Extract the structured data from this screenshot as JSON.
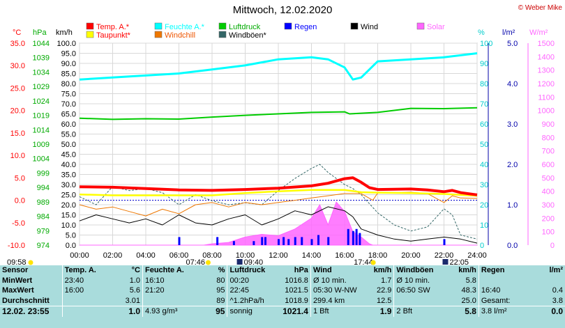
{
  "title": "Mittwoch, 12.02.2020",
  "copyright": "© Weber Mike",
  "colors": {
    "temp": "#ff0000",
    "dew": "#ffff00",
    "humidity": "#00ffff",
    "windchill": "#ee7700",
    "pressure": "#00cc00",
    "gusts": "#336666",
    "rain": "#0000ff",
    "wind": "#000000",
    "solar": "#ff66ff",
    "kmh": "#000000",
    "stats_bg": "#a9dcdc"
  },
  "legend": [
    {
      "label": "Temp. A.*",
      "color": "#ff0000",
      "text_color": "#ff0000"
    },
    {
      "label": "Feuchte A.*",
      "color": "#00ffff",
      "text_color": "#00ffff"
    },
    {
      "label": "Luftdruck",
      "color": "#00cc00",
      "text_color": "#00aa00"
    },
    {
      "label": "Regen",
      "color": "#0000ff",
      "text_color": "#0000ff"
    },
    {
      "label": "Wind",
      "color": "#000000",
      "text_color": "#000000"
    },
    {
      "label": "Solar",
      "color": "#ff66ff",
      "text_color": "#ff66ff"
    },
    {
      "label": "Taupunkt*",
      "color": "#ffff00",
      "text_color": "#ff0000"
    },
    {
      "label": "Windchill",
      "color": "#ee7700",
      "text_color": "#ee5500"
    },
    {
      "label": "Windböen*",
      "color": "#336666",
      "text_color": "#000000"
    }
  ],
  "axis_units": {
    "temp": "°C",
    "pressure": "hPa",
    "speed": "km/h",
    "humidity": "%",
    "rain": "l/m²",
    "solar": "W/m²"
  },
  "axis_ticks": {
    "temp": [
      "35.0",
      "30.0",
      "25.0",
      "20.0",
      "15.0",
      "10.0",
      "5.0",
      "0.0",
      "-5.0",
      "-10.0"
    ],
    "pressure": [
      "1044",
      "1039",
      "1034",
      "1029",
      "1024",
      "1019",
      "1014",
      "1009",
      "1004",
      "999",
      "994",
      "989",
      "984",
      "979",
      "974"
    ],
    "speed": [
      "100.0",
      "95.0",
      "90.0",
      "85.0",
      "80.0",
      "75.0",
      "70.0",
      "65.0",
      "60.0",
      "55.0",
      "50.0",
      "45.0",
      "40.0",
      "35.0",
      "30.0",
      "25.0",
      "20.0",
      "15.0",
      "10.0",
      "5.0",
      "0.0"
    ],
    "humidity": [
      "100",
      "90",
      "80",
      "70",
      "60",
      "50",
      "40",
      "30",
      "20",
      "10",
      "0"
    ],
    "rain": [
      "5.0",
      "4.0",
      "3.0",
      "2.0",
      "1.0",
      "0.0"
    ],
    "solar": [
      "1500",
      "1400",
      "1300",
      "1200",
      "1100",
      "1000",
      "900",
      "800",
      "700",
      "600",
      "500",
      "400",
      "300",
      "200",
      "100",
      "0"
    ],
    "time": [
      "00:00",
      "02:00",
      "04:00",
      "06:00",
      "08:00",
      "10:00",
      "12:00",
      "14:00",
      "16:00",
      "18:00",
      "20:00",
      "22:00",
      "24:00"
    ]
  },
  "sun_marks": {
    "sunrise": "07:46",
    "sunset": "17:44",
    "moonrise": "09:40",
    "moonset": "22:05",
    "left_label": "09:58",
    "right_label": "22:05"
  },
  "chart_data": {
    "type": "line",
    "x_unit": "hour",
    "xlim": [
      0,
      24
    ],
    "series": [
      {
        "name": "Temp. A.",
        "unit": "°C",
        "values": [
          [
            0,
            3.0
          ],
          [
            2,
            2.9
          ],
          [
            4,
            2.6
          ],
          [
            6,
            2.3
          ],
          [
            8,
            2.2
          ],
          [
            10,
            2.4
          ],
          [
            12,
            2.7
          ],
          [
            14,
            3.2
          ],
          [
            15,
            3.8
          ],
          [
            16,
            4.8
          ],
          [
            16.5,
            5.0
          ],
          [
            17,
            4.0
          ],
          [
            17.5,
            2.8
          ],
          [
            18,
            2.4
          ],
          [
            20,
            2.5
          ],
          [
            21,
            2.3
          ],
          [
            22,
            1.9
          ],
          [
            22.5,
            2.2
          ],
          [
            23,
            1.7
          ],
          [
            24,
            1.2
          ]
        ]
      },
      {
        "name": "Taupunkt",
        "unit": "°C",
        "values": [
          [
            0,
            1.3
          ],
          [
            2,
            1.1
          ],
          [
            4,
            1.1
          ],
          [
            6,
            1.1
          ],
          [
            8,
            1.1
          ],
          [
            10,
            1.6
          ],
          [
            12,
            2.0
          ],
          [
            14,
            2.3
          ],
          [
            16,
            2.3
          ],
          [
            17,
            1.8
          ],
          [
            18,
            1.7
          ],
          [
            20,
            1.6
          ],
          [
            22,
            1.4
          ],
          [
            24,
            1.0
          ]
        ]
      },
      {
        "name": "Feuchte A.",
        "unit": "%",
        "values": [
          [
            0,
            82
          ],
          [
            2,
            83
          ],
          [
            4,
            84
          ],
          [
            6,
            85
          ],
          [
            8,
            87
          ],
          [
            10,
            89
          ],
          [
            12,
            92
          ],
          [
            14,
            93
          ],
          [
            15,
            92
          ],
          [
            16,
            88
          ],
          [
            16.5,
            82
          ],
          [
            17,
            83
          ],
          [
            18,
            91
          ],
          [
            20,
            92
          ],
          [
            22,
            93
          ],
          [
            24,
            95
          ]
        ]
      },
      {
        "name": "Luftdruck",
        "unit": "hPa",
        "values": [
          [
            0,
            1018.0
          ],
          [
            2,
            1017.6
          ],
          [
            4,
            1017.8
          ],
          [
            6,
            1017.7
          ],
          [
            8,
            1018.4
          ],
          [
            10,
            1019.0
          ],
          [
            12,
            1019.5
          ],
          [
            14,
            1020.0
          ],
          [
            16,
            1020.2
          ],
          [
            16.3,
            1019.5
          ],
          [
            18,
            1020.0
          ],
          [
            20,
            1021.4
          ],
          [
            22,
            1021.3
          ],
          [
            24,
            1021.6
          ]
        ]
      },
      {
        "name": "Wind",
        "unit": "km/h",
        "values": [
          [
            0,
            12
          ],
          [
            1,
            15
          ],
          [
            2,
            13
          ],
          [
            3,
            11
          ],
          [
            4,
            13
          ],
          [
            5,
            10
          ],
          [
            6,
            15
          ],
          [
            7,
            11
          ],
          [
            8,
            10
          ],
          [
            9,
            13
          ],
          [
            10,
            15
          ],
          [
            11,
            10
          ],
          [
            12,
            13
          ],
          [
            13,
            17
          ],
          [
            14,
            15
          ],
          [
            15,
            19
          ],
          [
            16,
            17
          ],
          [
            16.5,
            14
          ],
          [
            17,
            8
          ],
          [
            18,
            5
          ],
          [
            19,
            3
          ],
          [
            20,
            2
          ],
          [
            21,
            3
          ],
          [
            22,
            4
          ],
          [
            23,
            3
          ],
          [
            24,
            1
          ]
        ]
      },
      {
        "name": "Windchill",
        "unit": "°C",
        "values": [
          [
            0,
            -1.0
          ],
          [
            1,
            -2.0
          ],
          [
            2,
            -1.5
          ],
          [
            3,
            -2.5
          ],
          [
            4,
            -3.5
          ],
          [
            5,
            -2.0
          ],
          [
            6,
            -3.0
          ],
          [
            7,
            -1.0
          ],
          [
            8,
            -0.5
          ],
          [
            9,
            -1.5
          ],
          [
            10,
            -0.5
          ],
          [
            11,
            -1.0
          ],
          [
            12,
            -0.5
          ],
          [
            13,
            0.0
          ],
          [
            14,
            0.5
          ],
          [
            15,
            1.0
          ],
          [
            16,
            1.5
          ],
          [
            17,
            1.5
          ],
          [
            17.7,
            0.0
          ],
          [
            18,
            1.6
          ],
          [
            20,
            1.8
          ],
          [
            21,
            1.5
          ],
          [
            22,
            -0.5
          ],
          [
            22.5,
            1.0
          ],
          [
            23,
            0.5
          ],
          [
            24,
            0.4
          ]
        ]
      },
      {
        "name": "Windböen",
        "unit": "km/h",
        "values": [
          [
            0,
            24
          ],
          [
            1,
            20
          ],
          [
            2,
            29
          ],
          [
            3,
            27
          ],
          [
            4,
            28
          ],
          [
            5,
            26
          ],
          [
            6,
            20
          ],
          [
            7,
            25
          ],
          [
            8,
            22
          ],
          [
            9,
            20
          ],
          [
            10,
            21
          ],
          [
            11,
            20
          ],
          [
            12,
            27
          ],
          [
            13,
            33
          ],
          [
            14,
            38
          ],
          [
            14.5,
            40
          ],
          [
            15,
            36
          ],
          [
            16,
            30
          ],
          [
            16.5,
            28
          ],
          [
            17,
            25
          ],
          [
            18,
            16
          ],
          [
            19,
            10
          ],
          [
            20,
            7
          ],
          [
            21,
            9
          ],
          [
            22,
            18
          ],
          [
            22.5,
            15
          ],
          [
            23,
            5
          ],
          [
            24,
            3
          ]
        ]
      },
      {
        "name": "Solar",
        "unit": "W/m²",
        "values": [
          [
            0,
            0
          ],
          [
            7.5,
            0
          ],
          [
            8,
            10
          ],
          [
            9,
            20
          ],
          [
            10,
            60
          ],
          [
            11,
            80
          ],
          [
            12,
            70
          ],
          [
            13,
            120
          ],
          [
            14,
            200
          ],
          [
            14.5,
            300
          ],
          [
            15,
            150
          ],
          [
            15.5,
            320
          ],
          [
            16,
            250
          ],
          [
            16.5,
            100
          ],
          [
            17,
            60
          ],
          [
            17.5,
            10
          ],
          [
            17.7,
            0
          ],
          [
            24,
            0
          ]
        ]
      },
      {
        "name": "Regen",
        "unit": "l/m²",
        "values": [
          [
            6.0,
            0.2
          ],
          [
            8.3,
            0.2
          ],
          [
            9.3,
            0.1
          ],
          [
            10.5,
            0.1
          ],
          [
            11.0,
            0.2
          ],
          [
            11.2,
            0.2
          ],
          [
            12.0,
            0.15
          ],
          [
            12.3,
            0.2
          ],
          [
            12.6,
            0.15
          ],
          [
            13.0,
            0.2
          ],
          [
            13.4,
            0.2
          ],
          [
            14.0,
            0.15
          ],
          [
            14.4,
            0.25
          ],
          [
            15.0,
            0.2
          ],
          [
            16.2,
            0.4
          ],
          [
            16.5,
            0.35
          ],
          [
            16.7,
            0.4
          ],
          [
            16.9,
            0.3
          ],
          [
            22.0,
            0.15
          ]
        ]
      }
    ]
  },
  "stats": {
    "headers": [
      "Sensor",
      "Temp. A.",
      "°C",
      "Feuchte A.",
      "%",
      "Luftdruck",
      "hPa",
      "Wind",
      "km/h",
      "Windböen",
      "km/h",
      "Regen",
      "l/m²"
    ],
    "rows": [
      [
        "MinWert",
        "23:40",
        "1.0",
        "16:10",
        "80",
        "00:20",
        "1016.8",
        "Ø 10 min.",
        "1.7",
        "Ø 10 min.",
        "5.8",
        "",
        ""
      ],
      [
        "MaxWert",
        "16:00",
        "5.6",
        "21:20",
        "95",
        "22:45",
        "1021.5",
        "05:30 W-NW",
        "22.9",
        "06:50 SW",
        "48.3",
        "16:40",
        "0.4"
      ],
      [
        "Durchschnitt",
        "",
        "3.01",
        "",
        "89",
        "^1.2hPa/h",
        "1018.9",
        "299.4 km",
        "12.5",
        "",
        "25.0",
        "Gesamt:",
        "3.8"
      ],
      [
        "12.02. 23:55",
        "",
        "1.0",
        "4.93 g/m³",
        "95",
        "sonnig",
        "1021.4",
        "1 Bft",
        "1.9",
        "2 Bft",
        "5.8",
        "3.8 l/m²",
        "0.0"
      ]
    ]
  }
}
